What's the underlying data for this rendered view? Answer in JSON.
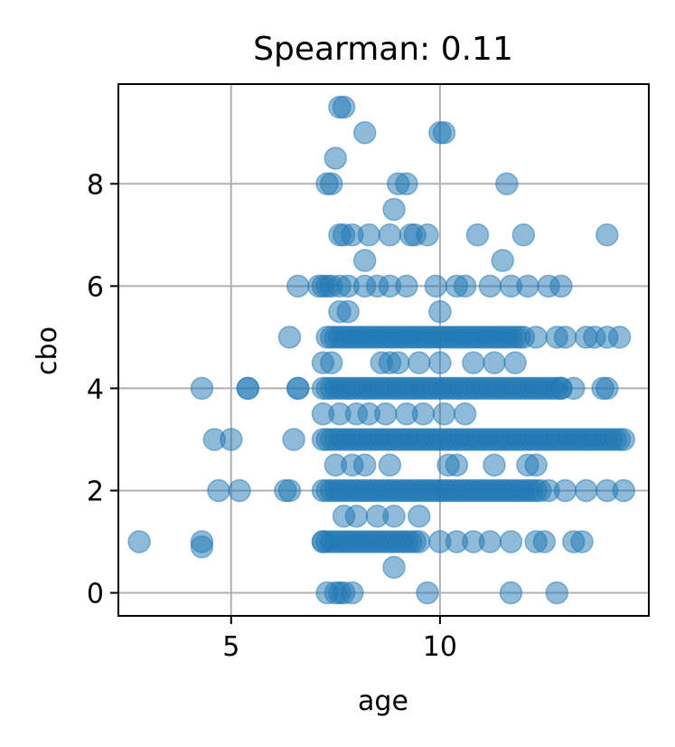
{
  "chart_data": {
    "type": "scatter",
    "title": "Spearman: 0.11",
    "xlabel": "age",
    "ylabel": "cbo",
    "xlim": [
      2.3,
      15.0
    ],
    "ylim": [
      -0.45,
      9.95
    ],
    "xticks": [
      5,
      10
    ],
    "yticks": [
      0,
      2,
      4,
      6,
      8
    ],
    "grid": true,
    "color": "#1f77b4",
    "alpha": 0.5,
    "points": [
      [
        2.8,
        1
      ],
      [
        4.3,
        1
      ],
      [
        4.3,
        4
      ],
      [
        4.3,
        0.9
      ],
      [
        4.6,
        3
      ],
      [
        5.0,
        3
      ],
      [
        4.7,
        2
      ],
      [
        5.2,
        2
      ],
      [
        5.4,
        4
      ],
      [
        5.4,
        4
      ],
      [
        6.3,
        2
      ],
      [
        6.4,
        2
      ],
      [
        6.6,
        4
      ],
      [
        6.6,
        4
      ],
      [
        6.5,
        3
      ],
      [
        6.4,
        5
      ],
      [
        6.6,
        6
      ],
      [
        7.1,
        6
      ],
      [
        7.2,
        6.0
      ],
      [
        7.3,
        6
      ],
      [
        7.4,
        6
      ],
      [
        7.6,
        6
      ],
      [
        7.8,
        6
      ],
      [
        8.2,
        6
      ],
      [
        8.5,
        6
      ],
      [
        8.8,
        6
      ],
      [
        9.2,
        6
      ],
      [
        9.9,
        6
      ],
      [
        10.4,
        6
      ],
      [
        10.6,
        6
      ],
      [
        11.2,
        6
      ],
      [
        11.7,
        6
      ],
      [
        12.1,
        6
      ],
      [
        12.6,
        6
      ],
      [
        12.9,
        6
      ],
      [
        7.3,
        8
      ],
      [
        7.4,
        8
      ],
      [
        7.5,
        8.5
      ],
      [
        7.6,
        9.5
      ],
      [
        7.7,
        9.5
      ],
      [
        8.2,
        9
      ],
      [
        10.0,
        9
      ],
      [
        10.1,
        9
      ],
      [
        11.6,
        8
      ],
      [
        9.0,
        8
      ],
      [
        9.2,
        8
      ],
      [
        8.9,
        7.5
      ],
      [
        7.6,
        7
      ],
      [
        7.7,
        7
      ],
      [
        7.9,
        7
      ],
      [
        8.3,
        7
      ],
      [
        8.8,
        7
      ],
      [
        9.3,
        7
      ],
      [
        9.4,
        7
      ],
      [
        9.7,
        7
      ],
      [
        10.9,
        7
      ],
      [
        12.0,
        7
      ],
      [
        14.0,
        7
      ],
      [
        11.5,
        6.5
      ],
      [
        8.2,
        6.5
      ],
      [
        7.6,
        5.5
      ],
      [
        7.8,
        5.5
      ],
      [
        10.0,
        5.5
      ],
      [
        7.2,
        4.5
      ],
      [
        7.4,
        4.5
      ],
      [
        8.6,
        4.5
      ],
      [
        8.8,
        4.5
      ],
      [
        9.0,
        4.5
      ],
      [
        9.5,
        4.5
      ],
      [
        10.0,
        4.5
      ],
      [
        10.8,
        4.5
      ],
      [
        11.3,
        4.5
      ],
      [
        11.8,
        4.5
      ],
      [
        7.2,
        3.5
      ],
      [
        7.6,
        3.5
      ],
      [
        8.0,
        3.5
      ],
      [
        8.3,
        3.5
      ],
      [
        8.7,
        3.5
      ],
      [
        9.2,
        3.5
      ],
      [
        9.6,
        3.5
      ],
      [
        10.1,
        3.5
      ],
      [
        10.6,
        3.5
      ],
      [
        7.5,
        2.5
      ],
      [
        7.9,
        2.5
      ],
      [
        8.2,
        2.5
      ],
      [
        8.8,
        2.5
      ],
      [
        10.2,
        2.5
      ],
      [
        10.4,
        2.5
      ],
      [
        11.3,
        2.5
      ],
      [
        12.1,
        2.5
      ],
      [
        12.3,
        2.5
      ],
      [
        7.7,
        1.5
      ],
      [
        8.0,
        1.5
      ],
      [
        8.5,
        1.5
      ],
      [
        8.9,
        1.5
      ],
      [
        9.5,
        1.5
      ],
      [
        8.9,
        0.5
      ],
      [
        7.3,
        0
      ],
      [
        7.5,
        0
      ],
      [
        7.6,
        0
      ],
      [
        7.7,
        0
      ],
      [
        7.9,
        0
      ],
      [
        9.7,
        0
      ],
      [
        11.7,
        0
      ],
      [
        12.8,
        0
      ],
      [
        7.2,
        1
      ],
      [
        10.8,
        1
      ],
      [
        11.2,
        1
      ],
      [
        11.7,
        1
      ],
      [
        12.3,
        1
      ],
      [
        12.5,
        1
      ],
      [
        13.2,
        1
      ],
      [
        13.4,
        1
      ],
      [
        10.0,
        1
      ],
      [
        10.4,
        1
      ],
      [
        12.0,
        5
      ],
      [
        12.3,
        5
      ],
      [
        12.8,
        5
      ],
      [
        13.0,
        5
      ],
      [
        13.5,
        5
      ],
      [
        13.7,
        5
      ],
      [
        14.0,
        5
      ],
      [
        14.3,
        5
      ],
      [
        12.6,
        2
      ],
      [
        13.0,
        2
      ],
      [
        13.5,
        2
      ],
      [
        14.0,
        2
      ],
      [
        14.4,
        2
      ],
      [
        12.9,
        4
      ],
      [
        13.2,
        4
      ],
      [
        13.9,
        4
      ],
      [
        14.0,
        4
      ]
    ],
    "bands": [
      {
        "y": 1,
        "x": [
          7.2,
          9.5
        ],
        "step": 0.1
      },
      {
        "y": 2,
        "x": [
          7.2,
          12.4
        ],
        "step": 0.1
      },
      {
        "y": 3,
        "x": [
          7.2,
          14.4
        ],
        "step": 0.1
      },
      {
        "y": 4,
        "x": [
          7.2,
          12.9
        ],
        "step": 0.1
      },
      {
        "y": 5,
        "x": [
          7.3,
          11.9
        ],
        "step": 0.1
      }
    ]
  }
}
